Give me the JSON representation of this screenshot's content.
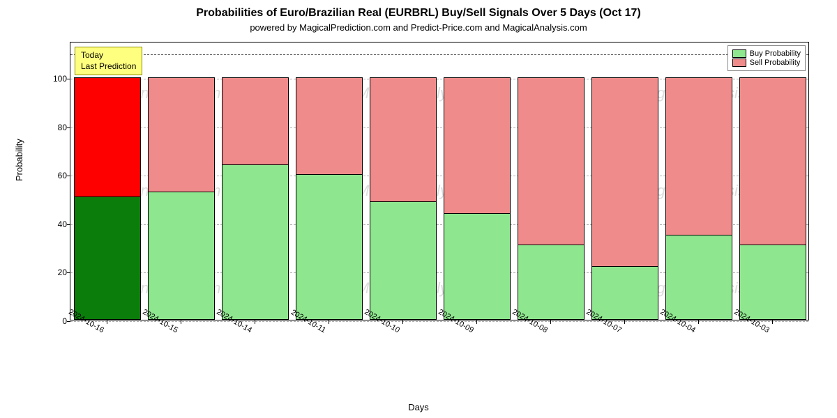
{
  "title": "Probabilities of Euro/Brazilian Real (EURBRL) Buy/Sell Signals Over 5 Days (Oct 17)",
  "subtitle": "powered by MagicalPrediction.com and Predict-Price.com and MagicalAnalysis.com",
  "ylabel": "Probability",
  "xlabel": "Days",
  "chart": {
    "type": "stacked-bar",
    "background_color": "#ffffff",
    "border_color": "#000000",
    "grid_color": "#b0b0b0",
    "grid_dash": "4 4",
    "ylim": [
      0,
      115
    ],
    "yticks": [
      0,
      20,
      40,
      60,
      80,
      100
    ],
    "hline_at": 110,
    "bar_width_ratio": 0.9,
    "categories": [
      "2024-10-16",
      "2024-10-15",
      "2024-10-14",
      "2024-10-11",
      "2024-10-10",
      "2024-10-09",
      "2024-10-08",
      "2024-10-07",
      "2024-10-04",
      "2024-10-03"
    ],
    "buy_values": [
      51,
      53,
      64,
      60,
      49,
      44,
      31,
      22,
      35,
      31
    ],
    "sell_values": [
      49,
      47,
      36,
      40,
      51,
      56,
      69,
      78,
      65,
      69
    ],
    "buy_color_current": "#0a7d0a",
    "sell_color_current": "#ff0000",
    "buy_color": "#8ee68e",
    "sell_color": "#f08b8b",
    "title_fontsize": 16,
    "subtitle_fontsize": 13,
    "label_fontsize": 13,
    "tick_fontsize": 12,
    "x_tick_rotation_deg": 30
  },
  "today_box": {
    "line1": "Today",
    "line2": "Last Prediction",
    "bg": "#ffff7f",
    "border": "#888800"
  },
  "legend": {
    "buy_label": "Buy Probability",
    "sell_label": "Sell Probability"
  },
  "watermark_text": "MagicalAnalysis.com"
}
